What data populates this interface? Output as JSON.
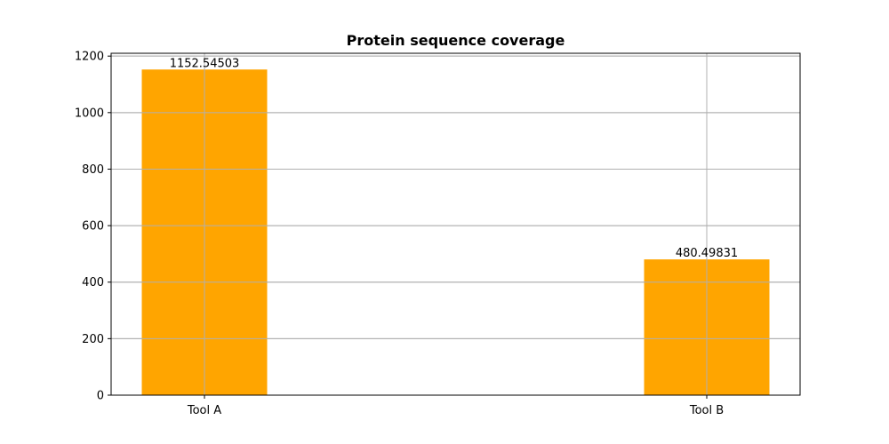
{
  "chart_data": {
    "type": "bar",
    "title": "Protein sequence coverage",
    "xlabel": "",
    "ylabel": "",
    "categories": [
      "Tool A",
      "Tool B"
    ],
    "values": [
      1152.54503,
      480.49831
    ],
    "data_labels": [
      "1152.54503",
      "480.49831"
    ],
    "ylim": [
      0,
      1210
    ],
    "yticks": [
      0,
      200,
      400,
      600,
      800,
      1000,
      1200
    ],
    "ytick_labels": [
      "0",
      "200",
      "400",
      "600",
      "800",
      "1000",
      "1200"
    ],
    "grid": true,
    "legend": "none",
    "bar_color": "#ffa500",
    "grid_color": "#b0b0b0",
    "axis_color": "#000000"
  }
}
